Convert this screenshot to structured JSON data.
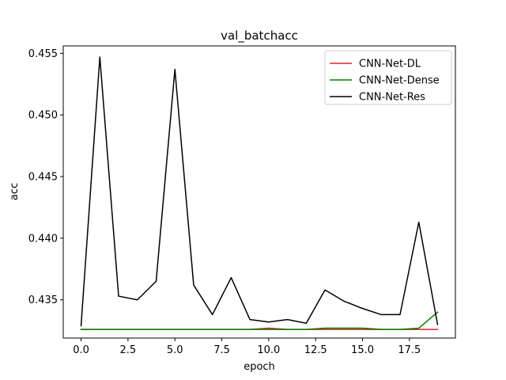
{
  "chart_data": {
    "type": "line",
    "title": "val_batchacc",
    "xlabel": "epoch",
    "ylabel": "acc",
    "xlim": [
      -0.95,
      19.95
    ],
    "ylim": [
      0.4319,
      0.4556
    ],
    "x_ticks": [
      0.0,
      2.5,
      5.0,
      7.5,
      10.0,
      12.5,
      15.0,
      17.5
    ],
    "x_tick_labels": [
      "0.0",
      "2.5",
      "5.0",
      "7.5",
      "10.0",
      "12.5",
      "15.0",
      "17.5"
    ],
    "y_ticks": [
      0.435,
      0.44,
      0.445,
      0.45,
      0.455
    ],
    "y_tick_labels": [
      "0.435",
      "0.440",
      "0.445",
      "0.450",
      "0.455"
    ],
    "grid": false,
    "legend_position": "top-right",
    "x": [
      0,
      1,
      2,
      3,
      4,
      5,
      6,
      7,
      8,
      9,
      10,
      11,
      12,
      13,
      14,
      15,
      16,
      17,
      18,
      19
    ],
    "series": [
      {
        "name": "CNN-Net-DL",
        "color": "#d62728",
        "values": [
          0.4326,
          0.4326,
          0.4326,
          0.4326,
          0.4326,
          0.4326,
          0.4326,
          0.4326,
          0.4326,
          0.4326,
          0.4327,
          0.4326,
          0.4326,
          0.4326,
          0.4326,
          0.4326,
          0.4326,
          0.4326,
          0.4326,
          0.4326
        ]
      },
      {
        "name": "CNN-Net-Dense",
        "color": "#008000",
        "values": [
          0.4326,
          0.4326,
          0.4326,
          0.4326,
          0.4326,
          0.4326,
          0.4326,
          0.4326,
          0.4326,
          0.4326,
          0.4326,
          0.4326,
          0.4326,
          0.4327,
          0.4327,
          0.4327,
          0.4326,
          0.4326,
          0.4327,
          0.434
        ]
      },
      {
        "name": "CNN-Net-Res",
        "color": "#000000",
        "values": [
          0.4329,
          0.4547,
          0.4353,
          0.435,
          0.4365,
          0.4537,
          0.4362,
          0.4338,
          0.4368,
          0.4334,
          0.4332,
          0.4334,
          0.4331,
          0.4358,
          0.4349,
          0.4343,
          0.4338,
          0.4338,
          0.4413,
          0.433
        ]
      }
    ]
  }
}
